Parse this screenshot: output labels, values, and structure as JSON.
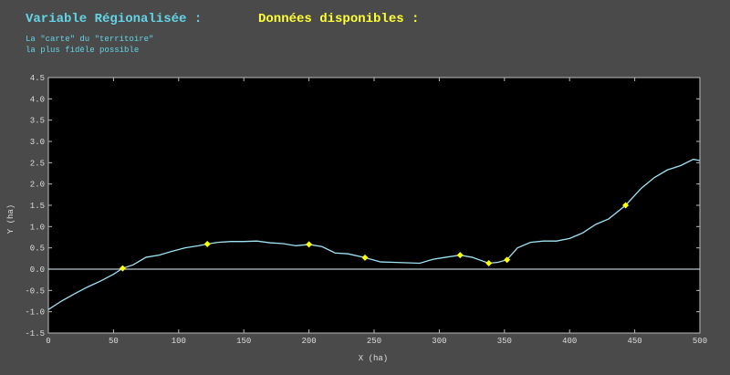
{
  "chart_data": {
    "type": "line",
    "title": "Variable Régionalisée :",
    "title_right": "Données disponibles :",
    "subtitle": [
      "La \"carte\" du \"territoire\"",
      "la plus fidèle possible"
    ],
    "x_label": "X  (ha)",
    "y_label": "Y  (ha)",
    "xlim": [
      0,
      500
    ],
    "ylim": [
      -1.5,
      4.5
    ],
    "xticks": [
      0,
      50,
      100,
      150,
      200,
      250,
      300,
      350,
      400,
      450,
      500
    ],
    "yticks": [
      {
        "value": -1.5,
        "label": "-1.5"
      },
      {
        "value": -1.0,
        "label": "-1.0"
      },
      -0.5,
      {
        "value": 0.0,
        "label": "0.0"
      },
      0.5,
      {
        "value": 1.0,
        "label": "1.0"
      },
      1.5,
      {
        "value": 2.0,
        "label": "2.0"
      },
      2.5,
      {
        "value": 3.0,
        "label": "3.0"
      },
      3.5,
      {
        "value": 4.0,
        "label": "4.0"
      },
      4.5
    ],
    "grid": false,
    "zero_line": true,
    "series": [
      {
        "type": "line",
        "color": "#9fe3f5",
        "x": [
          0,
          10,
          20,
          30,
          40,
          50,
          57,
          65,
          75,
          85,
          95,
          105,
          115,
          122,
          130,
          140,
          150,
          160,
          170,
          180,
          190,
          200,
          210,
          220,
          230,
          243,
          255,
          265,
          275,
          285,
          295,
          305,
          316,
          325,
          338,
          345,
          352,
          360,
          370,
          380,
          390,
          400,
          410,
          420,
          430,
          443,
          455,
          465,
          475,
          485,
          495,
          500
        ],
        "values": [
          -0.95,
          -0.75,
          -0.58,
          -0.42,
          -0.28,
          -0.12,
          0.02,
          0.1,
          0.28,
          0.33,
          0.42,
          0.5,
          0.55,
          0.59,
          0.63,
          0.65,
          0.65,
          0.66,
          0.62,
          0.6,
          0.55,
          0.58,
          0.53,
          0.38,
          0.36,
          0.27,
          0.17,
          0.16,
          0.15,
          0.14,
          0.23,
          0.28,
          0.33,
          0.28,
          0.14,
          0.16,
          0.22,
          0.5,
          0.63,
          0.66,
          0.66,
          0.72,
          0.85,
          1.05,
          1.18,
          1.5,
          1.9,
          2.15,
          2.33,
          2.43,
          2.58,
          2.55
        ]
      },
      {
        "type": "scatter",
        "color": "#ffff00",
        "x": [
          57,
          122,
          200,
          243,
          316,
          338,
          352,
          443
        ],
        "values": [
          0.02,
          0.59,
          0.58,
          0.27,
          0.33,
          0.14,
          0.22,
          1.5
        ]
      }
    ]
  }
}
